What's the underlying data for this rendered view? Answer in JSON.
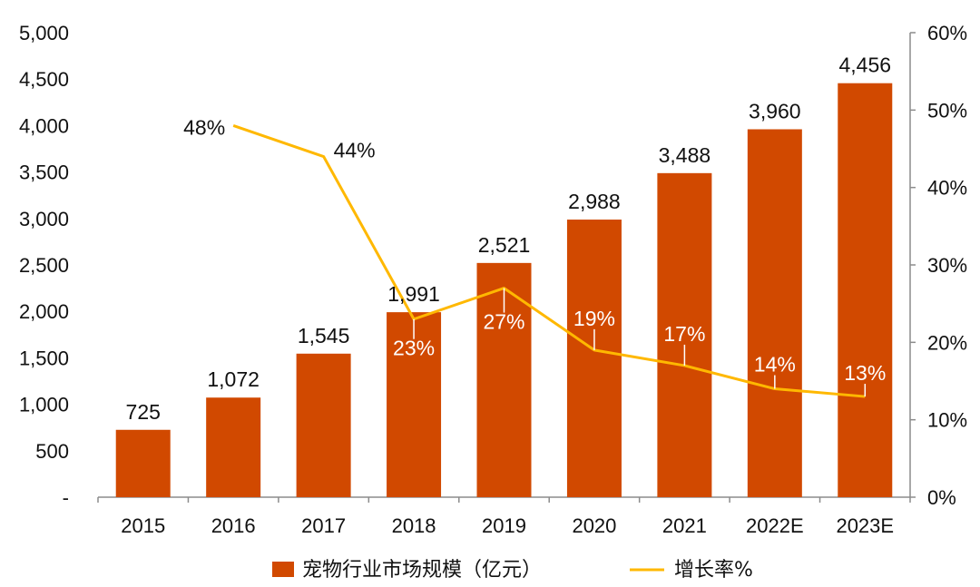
{
  "chart_data": {
    "type": "bar",
    "categories": [
      "2015",
      "2016",
      "2017",
      "2018",
      "2019",
      "2020",
      "2021",
      "2022E",
      "2023E"
    ],
    "series": [
      {
        "name": "宠物行业市场规模（亿元）",
        "type": "bar",
        "axis": "left",
        "values": [
          725,
          1072,
          1545,
          1991,
          2521,
          2988,
          3488,
          3960,
          4456
        ],
        "labels": [
          "725",
          "1,072",
          "1,545",
          "1,991",
          "2,521",
          "2,988",
          "3,488",
          "3,960",
          "4,456"
        ],
        "color": "#D14900"
      },
      {
        "name": "增长率%",
        "type": "line",
        "axis": "right",
        "values": [
          null,
          48,
          44,
          23,
          27,
          19,
          17,
          14,
          13
        ],
        "labels": [
          null,
          "48%",
          "44%",
          "23%",
          "27%",
          "19%",
          "17%",
          "14%",
          "13%"
        ],
        "color": "#FFB800"
      }
    ],
    "y_left": {
      "min": 0,
      "max": 5000,
      "ticks": [
        0,
        500,
        1000,
        1500,
        2000,
        2500,
        3000,
        3500,
        4000,
        4500,
        5000
      ],
      "tick_labels": [
        "-",
        "500",
        "1,000",
        "1,500",
        "2,000",
        "2,500",
        "3,000",
        "3,500",
        "4,000",
        "4,500",
        "5,000"
      ]
    },
    "y_right": {
      "min": 0,
      "max": 60,
      "ticks": [
        0,
        10,
        20,
        30,
        40,
        50,
        60
      ],
      "tick_labels": [
        "0%",
        "10%",
        "20%",
        "30%",
        "40%",
        "50%",
        "60%"
      ]
    },
    "title": "",
    "xlabel": "",
    "grid": false,
    "legend": "bottom"
  }
}
